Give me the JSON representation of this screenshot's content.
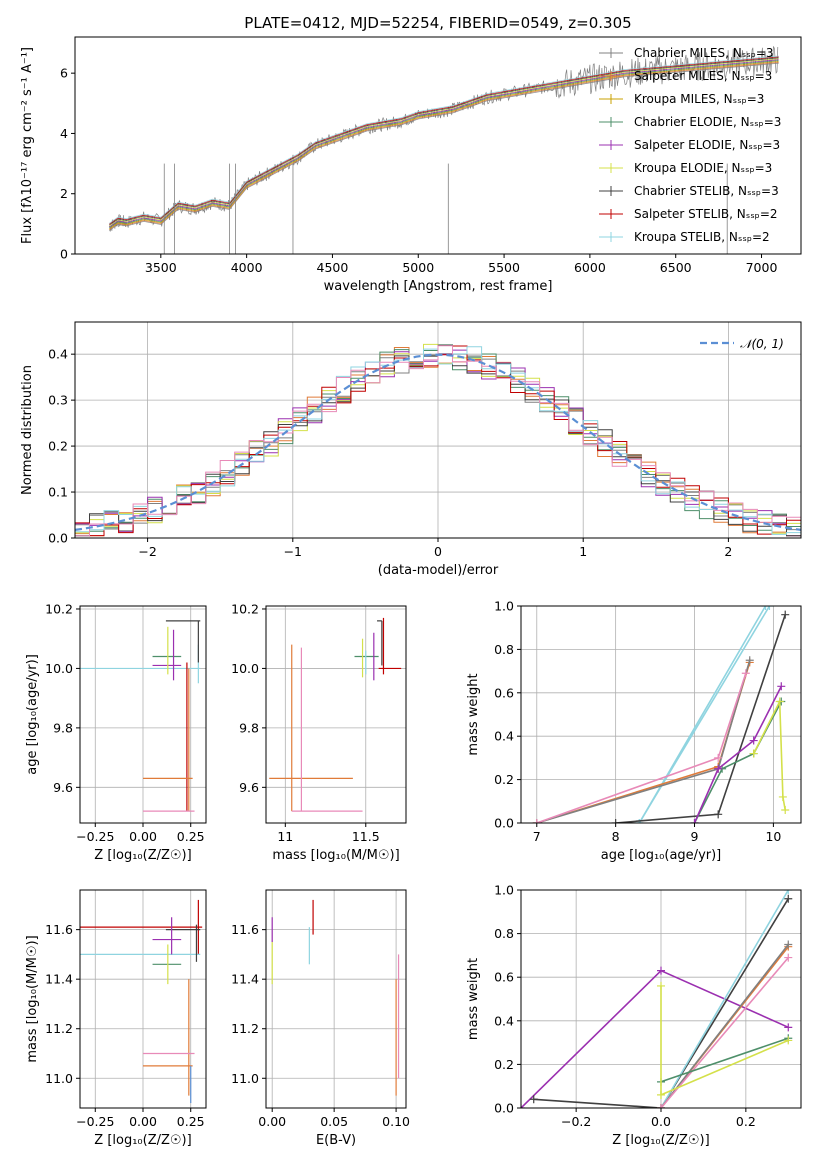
{
  "chart_data": [
    {
      "id": "spectrum",
      "type": "line",
      "title": "PLATE=0412, MJD=52254, FIBERID=0549, z=0.305",
      "xlabel": "wavelength [Angstrom, rest frame]",
      "ylabel": "Flux [fλ10⁻¹⁷ erg cm⁻² s⁻¹ A⁻¹]",
      "xlim": [
        3000,
        7230
      ],
      "ylim": [
        0,
        7.2
      ],
      "xticks": [
        3500,
        4000,
        4500,
        5000,
        5500,
        6000,
        6500,
        7000
      ],
      "yticks": [
        0,
        2,
        4,
        6
      ],
      "grid": false,
      "legend_position": "upper-right",
      "data_color": "#808080",
      "data_points": [
        [
          3200,
          0.9
        ],
        [
          3250,
          1.1
        ],
        [
          3300,
          1.05
        ],
        [
          3400,
          1.2
        ],
        [
          3500,
          1.1
        ],
        [
          3600,
          1.6
        ],
        [
          3700,
          1.5
        ],
        [
          3800,
          1.7
        ],
        [
          3900,
          1.6
        ],
        [
          4000,
          2.3
        ],
        [
          4100,
          2.6
        ],
        [
          4200,
          2.9
        ],
        [
          4300,
          3.2
        ],
        [
          4400,
          3.6
        ],
        [
          4500,
          3.8
        ],
        [
          4600,
          4.0
        ],
        [
          4700,
          4.2
        ],
        [
          4800,
          4.3
        ],
        [
          4900,
          4.4
        ],
        [
          5000,
          4.6
        ],
        [
          5100,
          4.7
        ],
        [
          5200,
          4.8
        ],
        [
          5300,
          5.0
        ],
        [
          5400,
          5.2
        ],
        [
          5500,
          5.3
        ],
        [
          5600,
          5.4
        ],
        [
          5700,
          5.5
        ],
        [
          5800,
          5.6
        ],
        [
          5900,
          5.7
        ],
        [
          6000,
          5.8
        ],
        [
          6100,
          5.9
        ],
        [
          6200,
          6.0
        ],
        [
          6300,
          6.05
        ],
        [
          6400,
          6.1
        ],
        [
          6500,
          6.15
        ],
        [
          6600,
          6.2
        ],
        [
          6700,
          6.25
        ],
        [
          6800,
          6.3
        ],
        [
          6900,
          6.35
        ],
        [
          7000,
          6.4
        ],
        [
          7100,
          6.45
        ]
      ],
      "legend": [
        {
          "label": "Chabrier MILES, Nₛₛₚ=3",
          "color": "#808080"
        },
        {
          "label": "Salpeter MILES, Nₛₛₚ=3",
          "color": "#e07b39"
        },
        {
          "label": "Kroupa MILES, Nₛₛₚ=3",
          "color": "#c8a000"
        },
        {
          "label": "Chabrier ELODIE, Nₛₛₚ=3",
          "color": "#4e8f6a"
        },
        {
          "label": "Salpeter ELODIE, Nₛₛₚ=3",
          "color": "#9b30b0"
        },
        {
          "label": "Kroupa ELODIE, Nₛₛₚ=3",
          "color": "#d4e04a"
        },
        {
          "label": "Chabrier STELIB, Nₛₛₚ=3",
          "color": "#404040"
        },
        {
          "label": "Salpeter STELIB, Nₛₛₚ=2",
          "color": "#c00000"
        },
        {
          "label": "Kroupa STELIB, Nₛₛₚ=2",
          "color": "#8fd4e0"
        }
      ]
    },
    {
      "id": "residuals",
      "type": "line",
      "xlabel": "(data-model)/error",
      "ylabel": "Normed distribution",
      "xlim": [
        -2.5,
        2.5
      ],
      "ylim": [
        0,
        0.47
      ],
      "xticks": [
        -2,
        -1,
        0,
        1,
        2
      ],
      "yticks": [
        0.0,
        0.1,
        0.2,
        0.3,
        0.4
      ],
      "grid": true,
      "legend_position": "upper-right",
      "legend": [
        {
          "label": "𝒩(0, 1)",
          "color": "#5b8fd4"
        }
      ],
      "bin_width": 0.1,
      "step_colors": [
        "#808080",
        "#e07b39",
        "#4e8f6a",
        "#9b30b0",
        "#d4e04a",
        "#404040",
        "#c00000",
        "#8fd4e0",
        "#e88ab8"
      ]
    },
    {
      "id": "z-age",
      "type": "scatter",
      "xlabel": "Z [log₁₀(Z/Z☉)]",
      "ylabel": "age  [log₁₀(age/yr)]",
      "xlim": [
        -0.33,
        0.33
      ],
      "ylim": [
        9.48,
        10.21
      ],
      "xticks": [
        -0.25,
        0.0,
        0.25
      ],
      "xtick_labels": [
        "−0.25",
        "0.00",
        "0.25"
      ],
      "yticks": [
        9.6,
        9.8,
        10.0,
        10.2
      ],
      "grid": true,
      "segments": [
        {
          "c": "#8fd4e0",
          "x": [
            -0.33,
            0.3
          ],
          "y": [
            10.0,
            10.0
          ]
        },
        {
          "c": "#8fd4e0",
          "x": [
            0.29,
            0.29
          ],
          "y": [
            9.95,
            10.08
          ]
        },
        {
          "c": "#c00000",
          "x": [
            0.23,
            0.23
          ],
          "y": [
            9.52,
            10.02
          ]
        },
        {
          "c": "#e07b39",
          "x": [
            0.24,
            0.24
          ],
          "y": [
            9.52,
            10.0
          ]
        },
        {
          "c": "#e07b39",
          "x": [
            0.0,
            0.26
          ],
          "y": [
            9.63,
            9.63
          ]
        },
        {
          "c": "#e88ab8",
          "x": [
            0.0,
            0.27
          ],
          "y": [
            9.52,
            9.52
          ]
        },
        {
          "c": "#404040",
          "x": [
            0.12,
            0.3
          ],
          "y": [
            10.16,
            10.16
          ]
        },
        {
          "c": "#404040",
          "x": [
            0.29,
            0.29
          ],
          "y": [
            10.02,
            10.16
          ]
        },
        {
          "c": "#4e8f6a",
          "x": [
            0.05,
            0.2
          ],
          "y": [
            10.04,
            10.04
          ]
        },
        {
          "c": "#9b30b0",
          "x": [
            0.16,
            0.16
          ],
          "y": [
            9.96,
            10.13
          ]
        },
        {
          "c": "#9b30b0",
          "x": [
            0.05,
            0.2
          ],
          "y": [
            10.01,
            10.01
          ]
        },
        {
          "c": "#d4e04a",
          "x": [
            0.13,
            0.13
          ],
          "y": [
            9.98,
            10.14
          ]
        }
      ]
    },
    {
      "id": "mass-age",
      "type": "scatter",
      "xlabel": "mass [log₁₀(M/M☉)]",
      "ylabel": "",
      "xlim": [
        10.88,
        11.75
      ],
      "ylim": [
        9.48,
        10.21
      ],
      "xticks": [
        11.0,
        11.5
      ],
      "yticks": [
        9.6,
        9.8,
        10.0,
        10.2
      ],
      "grid": true,
      "segments": [
        {
          "c": "#e07b39",
          "x": [
            10.9,
            11.42
          ],
          "y": [
            9.63,
            9.63
          ]
        },
        {
          "c": "#e07b39",
          "x": [
            11.04,
            11.04
          ],
          "y": [
            9.52,
            10.08
          ]
        },
        {
          "c": "#e88ab8",
          "x": [
            11.04,
            11.48
          ],
          "y": [
            9.52,
            9.52
          ]
        },
        {
          "c": "#e88ab8",
          "x": [
            11.1,
            11.1
          ],
          "y": [
            9.52,
            10.07
          ]
        },
        {
          "c": "#404040",
          "x": [
            11.57,
            11.6
          ],
          "y": [
            10.16,
            10.16
          ]
        },
        {
          "c": "#404040",
          "x": [
            11.6,
            11.6
          ],
          "y": [
            10.01,
            10.16
          ]
        },
        {
          "c": "#c00000",
          "x": [
            11.61,
            11.61
          ],
          "y": [
            9.98,
            10.17
          ]
        },
        {
          "c": "#c00000",
          "x": [
            11.58,
            11.72
          ],
          "y": [
            10.0,
            10.0
          ]
        },
        {
          "c": "#4e8f6a",
          "x": [
            11.43,
            11.58
          ],
          "y": [
            10.04,
            10.04
          ]
        },
        {
          "c": "#9b30b0",
          "x": [
            11.55,
            11.55
          ],
          "y": [
            9.96,
            10.12
          ]
        },
        {
          "c": "#d4e04a",
          "x": [
            11.48,
            11.48
          ],
          "y": [
            9.97,
            10.1
          ]
        },
        {
          "c": "#8fd4e0",
          "x": [
            11.5,
            11.5
          ],
          "y": [
            9.98,
            10.06
          ]
        }
      ]
    },
    {
      "id": "age-weight",
      "type": "line",
      "xlabel": "age  [log₁₀(age/yr)]",
      "ylabel": "mass weight",
      "xlim": [
        6.8,
        10.35
      ],
      "ylim": [
        0,
        1.0
      ],
      "xticks": [
        7,
        8,
        9,
        10
      ],
      "yticks": [
        0.0,
        0.2,
        0.4,
        0.6,
        0.8,
        1.0
      ],
      "grid": true,
      "series": [
        {
          "c": "#8fd4e0",
          "x": [
            8.3,
            9.95
          ],
          "y": [
            0.0,
            1.0
          ]
        },
        {
          "c": "#8fd4e0",
          "x": [
            8.3,
            9.9
          ],
          "y": [
            0.0,
            1.0
          ]
        },
        {
          "c": "#e07b39",
          "x": [
            7.0,
            9.3,
            9.7
          ],
          "y": [
            0.0,
            0.26,
            0.74
          ]
        },
        {
          "c": "#808080",
          "x": [
            7.0,
            9.3,
            9.7
          ],
          "y": [
            0.0,
            0.25,
            0.75
          ]
        },
        {
          "c": "#e88ab8",
          "x": [
            7.0,
            9.3,
            9.65
          ],
          "y": [
            0.0,
            0.3,
            0.69
          ]
        },
        {
          "c": "#404040",
          "x": [
            8.0,
            9.3,
            10.15
          ],
          "y": [
            0.0,
            0.04,
            0.96
          ]
        },
        {
          "c": "#4e8f6a",
          "x": [
            9.0,
            9.35,
            9.75,
            10.1
          ],
          "y": [
            0.0,
            0.25,
            0.32,
            0.56
          ]
        },
        {
          "c": "#9b30b0",
          "x": [
            9.0,
            9.3,
            9.75,
            10.1
          ],
          "y": [
            0.0,
            0.25,
            0.38,
            0.63
          ]
        },
        {
          "c": "#d4e04a",
          "x": [
            9.75,
            10.08,
            10.12,
            10.15
          ],
          "y": [
            0.32,
            0.56,
            0.12,
            0.06
          ]
        }
      ]
    },
    {
      "id": "z-mass",
      "type": "scatter",
      "xlabel": "Z [log₁₀(Z/Z☉)]",
      "ylabel": "mass [log₁₀(M/M☉)]",
      "xlim": [
        -0.33,
        0.33
      ],
      "ylim": [
        10.88,
        11.76
      ],
      "xticks": [
        -0.25,
        0.0,
        0.25
      ],
      "xtick_labels": [
        "−0.25",
        "0.00",
        "0.25"
      ],
      "yticks": [
        11.0,
        11.2,
        11.4,
        11.6
      ],
      "grid": true,
      "segments": [
        {
          "c": "#c00000",
          "x": [
            -0.33,
            0.31
          ],
          "y": [
            11.61,
            11.61
          ]
        },
        {
          "c": "#c00000",
          "x": [
            0.29,
            0.29
          ],
          "y": [
            11.5,
            11.72
          ]
        },
        {
          "c": "#8fd4e0",
          "x": [
            -0.33,
            0.3
          ],
          "y": [
            11.5,
            11.5
          ]
        },
        {
          "c": "#404040",
          "x": [
            0.12,
            0.3
          ],
          "y": [
            11.6,
            11.6
          ]
        },
        {
          "c": "#404040",
          "x": [
            0.28,
            0.28
          ],
          "y": [
            11.47,
            11.62
          ]
        },
        {
          "c": "#9b30b0",
          "x": [
            0.15,
            0.15
          ],
          "y": [
            11.5,
            11.65
          ]
        },
        {
          "c": "#9b30b0",
          "x": [
            0.05,
            0.2
          ],
          "y": [
            11.56,
            11.56
          ]
        },
        {
          "c": "#4e8f6a",
          "x": [
            0.05,
            0.2
          ],
          "y": [
            11.46,
            11.46
          ]
        },
        {
          "c": "#d4e04a",
          "x": [
            0.13,
            0.13
          ],
          "y": [
            11.38,
            11.54
          ]
        },
        {
          "c": "#e07b39",
          "x": [
            0.24,
            0.24
          ],
          "y": [
            10.93,
            11.4
          ]
        },
        {
          "c": "#e07b39",
          "x": [
            0.0,
            0.26
          ],
          "y": [
            11.05,
            11.05
          ]
        },
        {
          "c": "#e88ab8",
          "x": [
            0.0,
            0.27
          ],
          "y": [
            11.1,
            11.1
          ]
        },
        {
          "c": "#5b8fd4",
          "x": [
            0.25,
            0.25
          ],
          "y": [
            10.9,
            11.05
          ]
        }
      ]
    },
    {
      "id": "ebv-mass",
      "type": "scatter",
      "xlabel": "E(B-V)",
      "ylabel": "",
      "xlim": [
        -0.005,
        0.108
      ],
      "ylim": [
        10.88,
        11.76
      ],
      "xticks": [
        0.0,
        0.05,
        0.1
      ],
      "xtick_labels": [
        "0.00",
        "0.05",
        "0.10"
      ],
      "yticks": [
        11.0,
        11.2,
        11.4,
        11.6
      ],
      "grid": true,
      "segments": [
        {
          "c": "#9b30b0",
          "x": [
            0.0,
            0.0
          ],
          "y": [
            11.55,
            11.65
          ]
        },
        {
          "c": "#d4e04a",
          "x": [
            0.0,
            0.0
          ],
          "y": [
            11.38,
            11.55
          ]
        },
        {
          "c": "#c00000",
          "x": [
            0.033,
            0.033
          ],
          "y": [
            11.58,
            11.72
          ]
        },
        {
          "c": "#8fd4e0",
          "x": [
            0.03,
            0.03
          ],
          "y": [
            11.46,
            11.61
          ]
        },
        {
          "c": "#e07b39",
          "x": [
            0.1,
            0.1
          ],
          "y": [
            10.93,
            11.4
          ]
        },
        {
          "c": "#e88ab8",
          "x": [
            0.102,
            0.102
          ],
          "y": [
            11.0,
            11.5
          ]
        }
      ]
    },
    {
      "id": "z-weight",
      "type": "line",
      "xlabel": "Z [log₁₀(Z/Z☉)]",
      "ylabel": "mass weight",
      "xlim": [
        -0.33,
        0.33
      ],
      "ylim": [
        0,
        1.0
      ],
      "xticks": [
        -0.2,
        0.0,
        0.2
      ],
      "xtick_labels": [
        "−0.2",
        "0.0",
        "0.2"
      ],
      "yticks": [
        0.0,
        0.2,
        0.4,
        0.6,
        0.8,
        1.0
      ],
      "grid": true,
      "series": [
        {
          "c": "#9b30b0",
          "x": [
            -0.33,
            0.0,
            0.3
          ],
          "y": [
            0.0,
            0.63,
            0.37
          ]
        },
        {
          "c": "#404040",
          "x": [
            -0.3,
            0.0,
            0.3
          ],
          "y": [
            0.04,
            0.0,
            0.96
          ]
        },
        {
          "c": "#8fd4e0",
          "x": [
            0.0,
            0.3
          ],
          "y": [
            0.0,
            1.0
          ]
        },
        {
          "c": "#e07b39",
          "x": [
            0.0,
            0.3
          ],
          "y": [
            0.0,
            0.74
          ]
        },
        {
          "c": "#808080",
          "x": [
            0.0,
            0.3
          ],
          "y": [
            0.0,
            0.75
          ]
        },
        {
          "c": "#e88ab8",
          "x": [
            0.0,
            0.3
          ],
          "y": [
            0.0,
            0.69
          ]
        },
        {
          "c": "#4e8f6a",
          "x": [
            0.0,
            0.3
          ],
          "y": [
            0.12,
            0.32
          ]
        },
        {
          "c": "#d4e04a",
          "x": [
            0.0,
            0.3
          ],
          "y": [
            0.06,
            0.31
          ]
        },
        {
          "c": "#d4e04a",
          "x": [
            0.0,
            0.0
          ],
          "y": [
            0.06,
            0.56
          ]
        }
      ]
    }
  ]
}
